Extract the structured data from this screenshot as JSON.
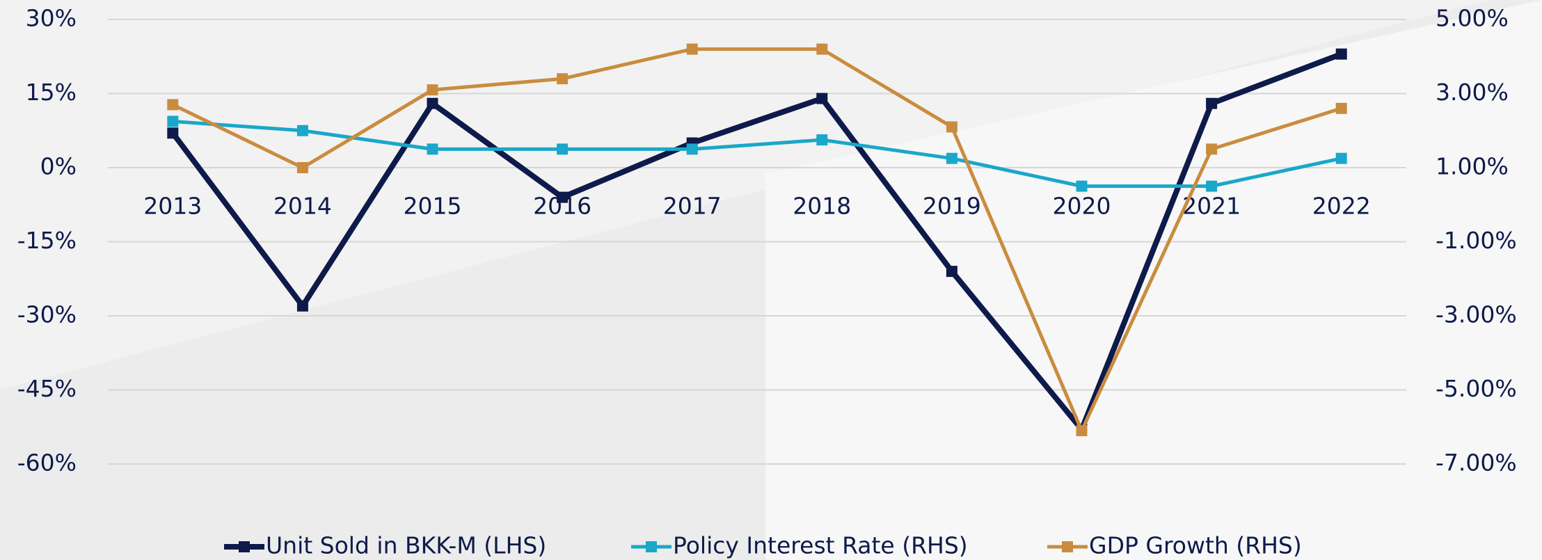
{
  "chart_data": {
    "type": "line",
    "categories": [
      "2013",
      "2014",
      "2015",
      "2016",
      "2017",
      "2018",
      "2019",
      "2020",
      "2021",
      "2022"
    ],
    "series": [
      {
        "name": "Unit Sold in BKK-M (LHS)",
        "color": "#0d1a4a",
        "values": [
          7,
          -28,
          13,
          -6,
          5,
          14,
          -21,
          -53,
          13,
          23
        ]
      },
      {
        "name": "Policy Interest Rate (RHS)",
        "color": "#1aa7c9",
        "axis": "y2",
        "values": [
          2.25,
          2.0,
          1.5,
          1.5,
          1.5,
          1.75,
          1.25,
          0.5,
          0.5,
          1.25
        ]
      },
      {
        "name": "GDP Growth (RHS)",
        "color": "#c98c3e",
        "axis": "y2",
        "values": [
          2.7,
          1.0,
          3.1,
          3.4,
          4.2,
          4.2,
          2.1,
          -6.1,
          1.5,
          2.6
        ]
      }
    ],
    "ylim": [
      -60,
      30
    ],
    "yticks": [
      {
        "value": -60,
        "label": "-60%"
      },
      {
        "value": -45,
        "label": "-45%"
      },
      {
        "value": -30,
        "label": "-30%"
      },
      {
        "value": -15,
        "label": "-15%"
      },
      {
        "value": 0,
        "label": "0%"
      },
      {
        "value": 15,
        "label": "15%"
      },
      {
        "value": 30,
        "label": "30%"
      }
    ],
    "y2lim": [
      -7,
      5
    ],
    "y2ticks": [
      {
        "value": -7,
        "label": "-7.00%"
      },
      {
        "value": -5,
        "label": "-5.00%"
      },
      {
        "value": -3,
        "label": "-3.00%"
      },
      {
        "value": -1,
        "label": "-1.00%"
      },
      {
        "value": 1,
        "label": "1.00%"
      },
      {
        "value": 3,
        "label": "3.00%"
      },
      {
        "value": 5,
        "label": "5.00%"
      }
    ],
    "grid": true,
    "legend": "bottom"
  }
}
